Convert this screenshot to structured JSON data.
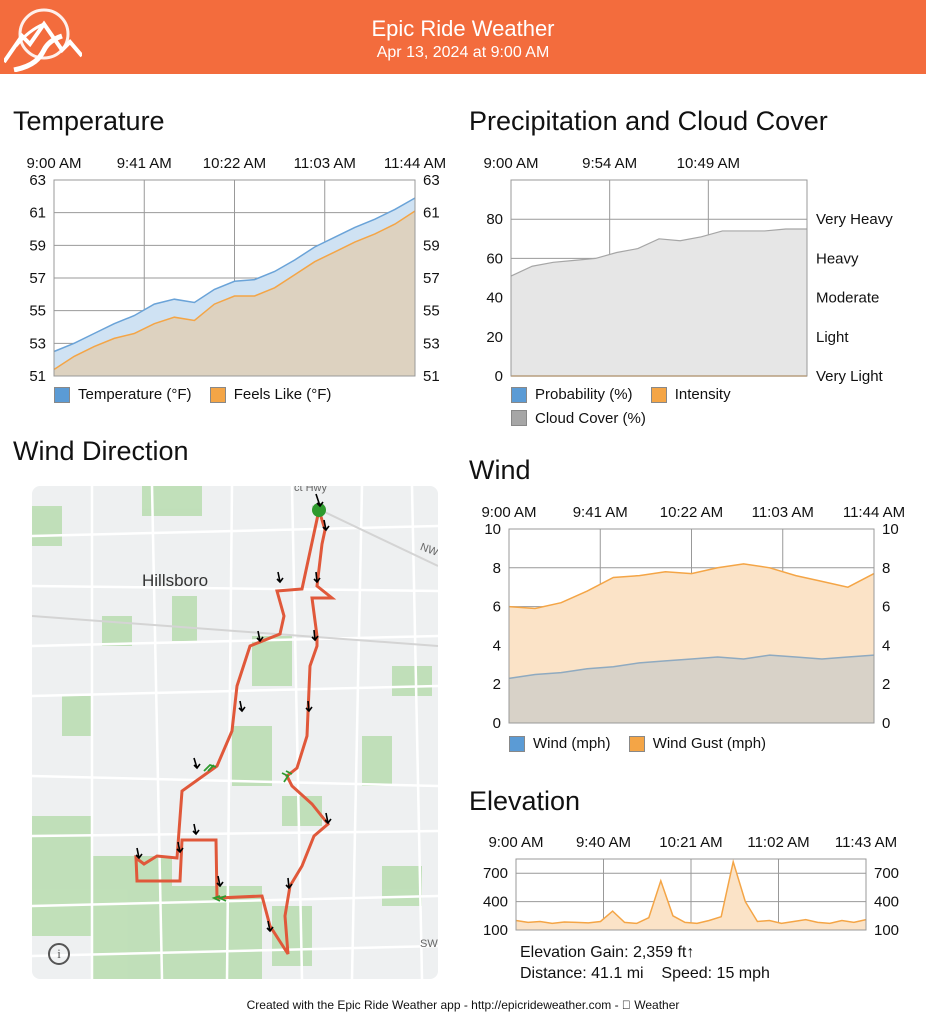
{
  "header": {
    "title": "Epic Ride Weather",
    "date": "Apr 13, 2024 at 9:00 AM",
    "bg_color": "#f36c3d"
  },
  "temperature": {
    "title": "Temperature",
    "chart_data": {
      "type": "area",
      "time_labels": [
        "9:00 AM",
        "9:41 AM",
        "10:22 AM",
        "11:03 AM",
        "11:44 AM"
      ],
      "y_ticks": [
        63,
        61,
        59,
        57,
        55,
        53,
        51
      ],
      "ylim": [
        51,
        63
      ],
      "series": [
        {
          "name": "Temperature (°F)",
          "color": "#5b9bd5",
          "fill": "#cfe2f3",
          "values": [
            52.5,
            53.0,
            53.6,
            54.2,
            54.7,
            55.4,
            55.7,
            55.5,
            56.3,
            56.8,
            56.9,
            57.4,
            58.1,
            58.9,
            59.5,
            60.1,
            60.6,
            61.2,
            61.9
          ]
        },
        {
          "name": "Feels Like (°F)",
          "color": "#f4a546",
          "fill": "#ddd2c0",
          "values": [
            51.4,
            52.2,
            52.8,
            53.3,
            53.6,
            54.2,
            54.6,
            54.4,
            55.4,
            55.9,
            55.9,
            56.4,
            57.2,
            58.0,
            58.6,
            59.2,
            59.7,
            60.3,
            61.1
          ]
        }
      ]
    }
  },
  "precipitation": {
    "title": "Precipitation and Cloud Cover",
    "chart_data": {
      "type": "area",
      "time_labels": [
        "9:00 AM",
        "9:54 AM",
        "10:49 AM"
      ],
      "y_ticks": [
        80,
        60,
        40,
        20,
        0
      ],
      "intensity_labels": [
        "Very Heavy",
        "Heavy",
        "Moderate",
        "Light",
        "Very Light"
      ],
      "ylim": [
        0,
        100
      ],
      "series": [
        {
          "name": "Probability (%)",
          "color": "#5b9bd5",
          "values": [
            0,
            0,
            0,
            0,
            0,
            0,
            0,
            0,
            0,
            0,
            0,
            0,
            0,
            0,
            0
          ]
        },
        {
          "name": "Intensity",
          "color": "#f4a546",
          "values": [
            0,
            0,
            0,
            0,
            0,
            0,
            0,
            0,
            0,
            0,
            0,
            0,
            0,
            0,
            0
          ]
        },
        {
          "name": "Cloud Cover (%)",
          "color": "#a6a6a6",
          "values": [
            51,
            56,
            58,
            59,
            60,
            63,
            65,
            70,
            69,
            71,
            74,
            74,
            74,
            75,
            75
          ]
        }
      ]
    }
  },
  "wind_direction": {
    "title": "Wind Direction",
    "place_label": "Hillsboro",
    "road_labels": [
      "NW",
      "SW",
      "ct Hwy"
    ],
    "info_label": "i"
  },
  "wind": {
    "title": "Wind",
    "chart_data": {
      "type": "area",
      "time_labels": [
        "9:00 AM",
        "9:41 AM",
        "10:22 AM",
        "11:03 AM",
        "11:44 AM"
      ],
      "y_ticks": [
        10,
        8,
        6,
        4,
        2,
        0
      ],
      "ylim": [
        0,
        10
      ],
      "series": [
        {
          "name": "Wind (mph)",
          "color": "#5b9bd5",
          "values": [
            2.3,
            2.5,
            2.6,
            2.8,
            2.9,
            3.1,
            3.2,
            3.3,
            3.4,
            3.3,
            3.5,
            3.4,
            3.3,
            3.4,
            3.5
          ]
        },
        {
          "name": "Wind Gust (mph)",
          "color": "#f4a546",
          "values": [
            6.0,
            5.9,
            6.2,
            6.8,
            7.5,
            7.6,
            7.8,
            7.7,
            8.0,
            8.2,
            8.0,
            7.6,
            7.3,
            7.0,
            7.7
          ]
        }
      ]
    }
  },
  "elevation": {
    "title": "Elevation",
    "chart_data": {
      "type": "area",
      "time_labels": [
        "9:00 AM",
        "9:40 AM",
        "10:21 AM",
        "11:02 AM",
        "11:43 AM"
      ],
      "y_ticks": [
        700,
        400,
        100
      ],
      "ylim": [
        100,
        850
      ],
      "series": [
        {
          "name": "Elevation (ft)",
          "color": "#f4a546",
          "values": [
            200,
            180,
            190,
            170,
            185,
            180,
            175,
            190,
            300,
            180,
            170,
            230,
            620,
            250,
            180,
            170,
            200,
            240,
            820,
            400,
            190,
            200,
            170,
            190,
            210,
            180,
            170,
            200,
            180,
            210
          ]
        }
      ]
    },
    "gain_label": "Elevation Gain: 2,359 ft↑",
    "distance_label": "Distance: 41.1 mi",
    "speed_label": "Speed: 15 mph"
  },
  "footer": {
    "text": "Created with the Epic Ride Weather app - http://epicrideweather.com -  Weather"
  }
}
